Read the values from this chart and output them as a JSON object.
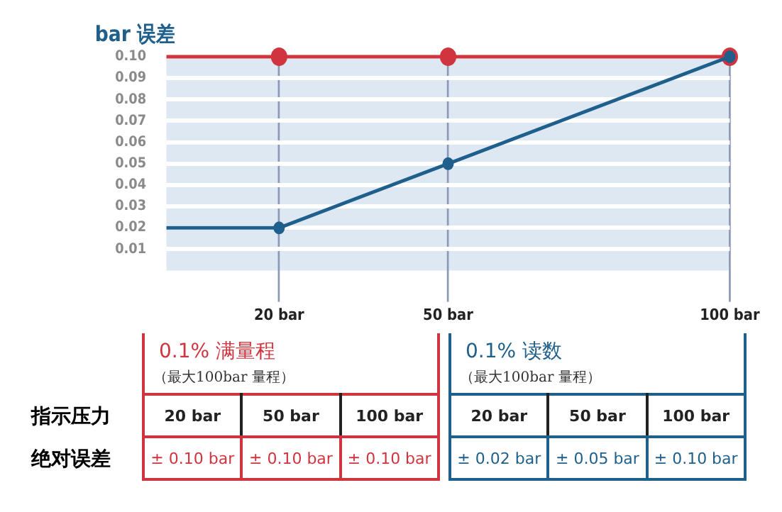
{
  "chart_data": {
    "type": "line",
    "ylabel": "bar 误差",
    "xlim": [
      0,
      100
    ],
    "xticks": [
      {
        "value": 20,
        "label": "20 bar"
      },
      {
        "value": 50,
        "label": "50 bar"
      },
      {
        "value": 100,
        "label": "100 bar"
      }
    ],
    "ylim": [
      0,
      0.1
    ],
    "yticks": [
      0.01,
      0.02,
      0.03,
      0.04,
      0.05,
      0.06,
      0.07,
      0.08,
      0.09,
      {
        "value": 0.1,
        "label": "0.10"
      }
    ],
    "grid": true,
    "legend": false,
    "marker": "circle",
    "line_style": "solid",
    "series": [
      {
        "name": "0.1% 满量程",
        "color": "#d0343f",
        "x": [
          0,
          20,
          50,
          100
        ],
        "values": [
          0.1,
          0.1,
          0.1,
          0.1
        ]
      },
      {
        "name": "0.1% 读数",
        "color": "#1f5f8b",
        "x": [
          0,
          20,
          50,
          100
        ],
        "values": [
          0.02,
          0.02,
          0.05,
          0.1
        ]
      }
    ],
    "annotations": [
      "（最大100bar 量程）",
      "（最大100bar 量程）",
      "指示压力",
      "绝对误差",
      "± 0.10 bar",
      "± 0.10 bar",
      "± 0.10 bar",
      "± 0.02 bar",
      "± 0.05 bar",
      "± 0.10 bar"
    ]
  }
}
